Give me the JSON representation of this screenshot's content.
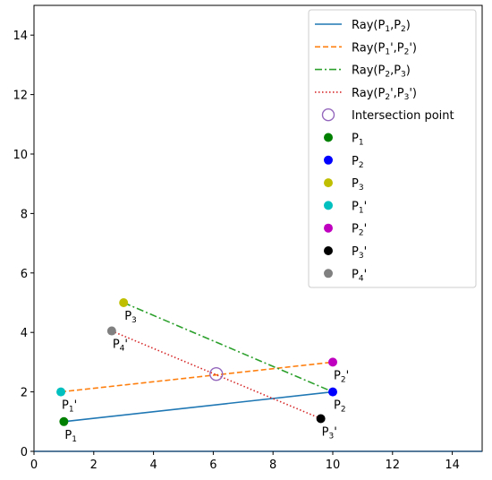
{
  "chart_data": {
    "type": "line",
    "xlim": [
      0,
      15
    ],
    "ylim": [
      0,
      15
    ],
    "xticks": [
      0,
      2,
      4,
      6,
      8,
      10,
      12,
      14
    ],
    "yticks": [
      0,
      2,
      4,
      6,
      8,
      10,
      12,
      14
    ],
    "grid": false,
    "legend_position": "top-right",
    "rays": [
      {
        "name": "Ray(P1,P2)",
        "start": [
          1,
          1
        ],
        "end": [
          10,
          2
        ],
        "color": "#1f77b4",
        "style": "solid"
      },
      {
        "name": "Ray(P1',P2')",
        "start": [
          0.9,
          2
        ],
        "end": [
          10,
          3
        ],
        "color": "#ff7f0e",
        "style": "dashed"
      },
      {
        "name": "Ray(P2,P3)",
        "start": [
          3,
          5
        ],
        "end": [
          10,
          2
        ],
        "color": "#2ca02c",
        "style": "dashdot"
      },
      {
        "name": "Ray(P2',P3')",
        "start": [
          2.6,
          4.05
        ],
        "end": [
          9.6,
          1.1
        ],
        "color": "#d62728",
        "style": "dotted"
      }
    ],
    "intersection": {
      "name": "Intersection point",
      "x": 6.1,
      "y": 2.6,
      "color": "#9467bd"
    },
    "points": [
      {
        "name": "P1",
        "x": 1,
        "y": 1,
        "color": "#008000"
      },
      {
        "name": "P2",
        "x": 10,
        "y": 2,
        "color": "#0000ff"
      },
      {
        "name": "P3",
        "x": 3,
        "y": 5,
        "color": "#bfbf00"
      },
      {
        "name": "P1'",
        "x": 0.9,
        "y": 2,
        "color": "#00bfbf"
      },
      {
        "name": "P2'",
        "x": 10,
        "y": 3,
        "color": "#bf00bf"
      },
      {
        "name": "P3'",
        "x": 9.6,
        "y": 1.1,
        "color": "#000000"
      },
      {
        "name": "P4'",
        "x": 2.6,
        "y": 4.05,
        "color": "#808080"
      }
    ],
    "legend": [
      {
        "kind": "line",
        "series": "Ray(P1,P2)",
        "base": "Ray(P",
        "parts": [
          [
            "1",
            ",P"
          ],
          [
            "2",
            ")"
          ]
        ]
      },
      {
        "kind": "line",
        "series": "Ray(P1',P2')",
        "base": "Ray(P",
        "parts": [
          [
            "1",
            "',P"
          ],
          [
            "2",
            "')"
          ]
        ]
      },
      {
        "kind": "line",
        "series": "Ray(P2,P3)",
        "base": "Ray(P",
        "parts": [
          [
            "2",
            ",P"
          ],
          [
            "3",
            ")"
          ]
        ]
      },
      {
        "kind": "line",
        "series": "Ray(P2',P3')",
        "base": "Ray(P",
        "parts": [
          [
            "2",
            "',P"
          ],
          [
            "3",
            "')"
          ]
        ]
      },
      {
        "kind": "intersection",
        "series": "Intersection point",
        "base": "Intersection point",
        "parts": []
      },
      {
        "kind": "point",
        "series": "P1",
        "base": "P",
        "parts": [
          [
            "1",
            ""
          ]
        ]
      },
      {
        "kind": "point",
        "series": "P2",
        "base": "P",
        "parts": [
          [
            "2",
            ""
          ]
        ]
      },
      {
        "kind": "point",
        "series": "P3",
        "base": "P",
        "parts": [
          [
            "3",
            ""
          ]
        ]
      },
      {
        "kind": "point",
        "series": "P1'",
        "base": "P",
        "parts": [
          [
            "1",
            "'"
          ]
        ]
      },
      {
        "kind": "point",
        "series": "P2'",
        "base": "P",
        "parts": [
          [
            "2",
            "'"
          ]
        ]
      },
      {
        "kind": "point",
        "series": "P3'",
        "base": "P",
        "parts": [
          [
            "3",
            "'"
          ]
        ]
      },
      {
        "kind": "point",
        "series": "P4'",
        "base": "P",
        "parts": [
          [
            "4",
            "'"
          ]
        ]
      }
    ]
  }
}
